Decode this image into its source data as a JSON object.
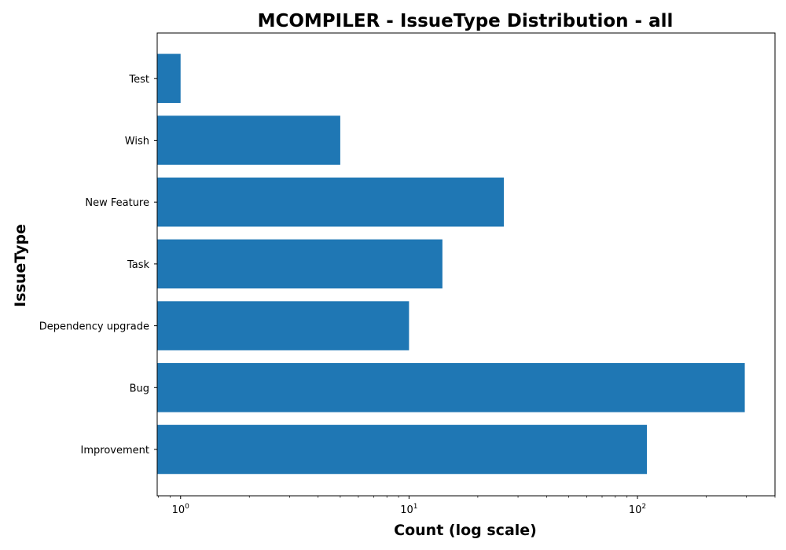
{
  "chart_data": {
    "type": "bar",
    "orientation": "horizontal",
    "title": "MCOMPILER - IssueType Distribution - all",
    "xlabel": "Count (log scale)",
    "ylabel": "IssueType",
    "x_scale": "log",
    "xlim": [
      0.79,
      400
    ],
    "x_ticks": [
      {
        "value": 1,
        "base": "10",
        "exp": "0"
      },
      {
        "value": 10,
        "base": "10",
        "exp": "1"
      },
      {
        "value": 100,
        "base": "10",
        "exp": "2"
      }
    ],
    "categories": [
      "Improvement",
      "Bug",
      "Dependency upgrade",
      "Task",
      "New Feature",
      "Wish",
      "Test"
    ],
    "values": [
      110,
      295,
      10,
      14,
      26,
      5,
      1
    ],
    "bar_color": "#1f77b4",
    "grid": false
  }
}
